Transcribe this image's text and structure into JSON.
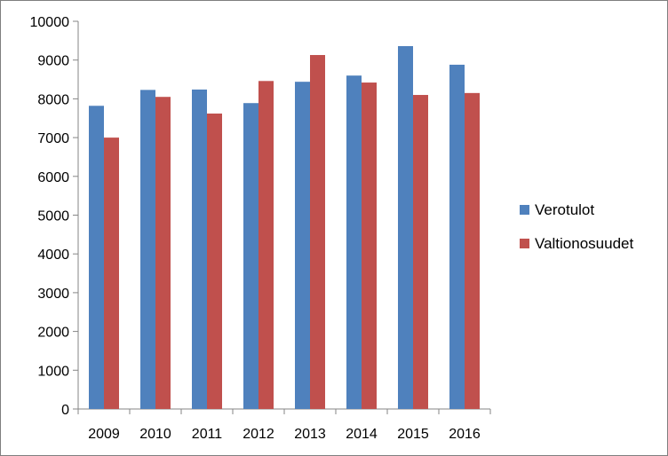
{
  "chart_data": {
    "type": "bar",
    "categories": [
      "2009",
      "2010",
      "2011",
      "2012",
      "2013",
      "2014",
      "2015",
      "2016"
    ],
    "series": [
      {
        "name": "Verotulot",
        "color": "#4f81bd",
        "values": [
          7820,
          8230,
          8240,
          7890,
          8440,
          8600,
          9360,
          8880
        ]
      },
      {
        "name": "Valtionosuudet",
        "color": "#c0504d",
        "values": [
          7000,
          8050,
          7620,
          8460,
          9130,
          8420,
          8100,
          8150
        ]
      }
    ],
    "ylim": [
      0,
      10000
    ],
    "yticks": [
      0,
      1000,
      2000,
      3000,
      4000,
      5000,
      6000,
      7000,
      8000,
      9000,
      10000
    ],
    "grid": false,
    "legend": "right"
  }
}
